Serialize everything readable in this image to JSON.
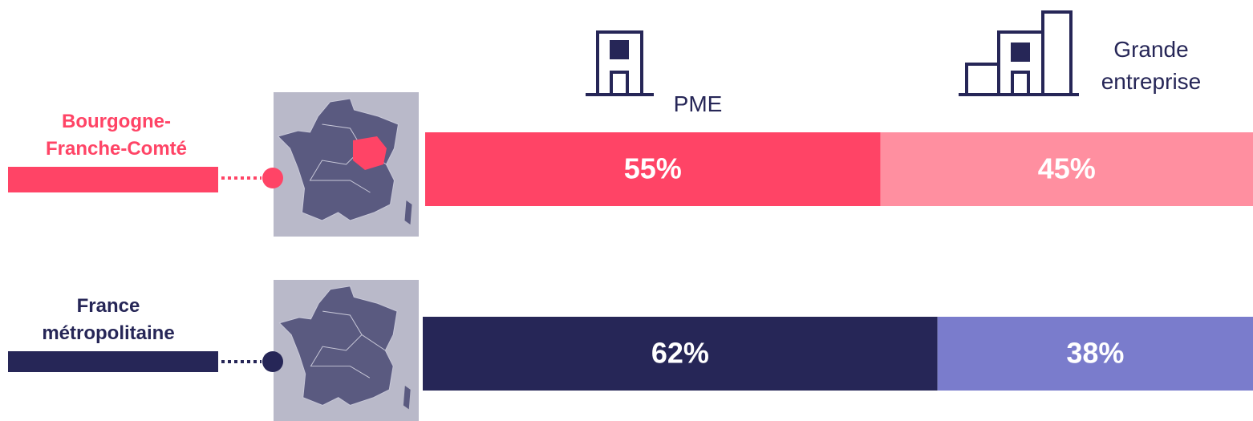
{
  "chart_data": {
    "type": "stacked-bar-100",
    "categories": [
      "Bourgogne-Franche-Comté",
      "France métropolitaine"
    ],
    "category_colors": [
      "#ff4466",
      "#262657"
    ],
    "series": [
      {
        "name": "PME",
        "colors": [
          "#ff4466",
          "#262657"
        ],
        "values": [
          55,
          62
        ],
        "value_labels": [
          "55%",
          "62%"
        ]
      },
      {
        "name": "Grande entreprise",
        "colors": [
          "#ff8fa0",
          "#7a7ccc"
        ],
        "values": [
          45,
          38
        ],
        "value_labels": [
          "45%",
          "38%"
        ]
      }
    ]
  }
}
